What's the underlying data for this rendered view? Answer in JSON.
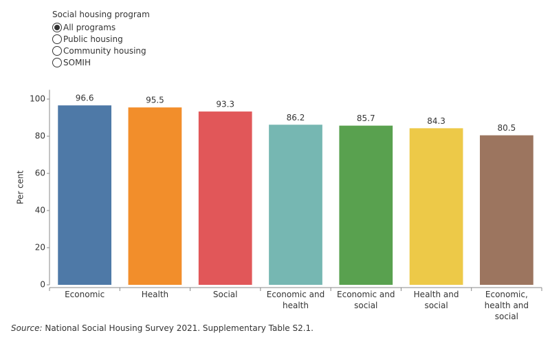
{
  "filter": {
    "title": "Social housing program",
    "options": [
      "All programs",
      "Public housing",
      "Community housing",
      "SOMIH"
    ],
    "selected": 0
  },
  "chart_data": {
    "type": "bar",
    "categories": [
      "Economic",
      "Health",
      "Social",
      "Economic and health",
      "Economic and social",
      "Health and social",
      "Economic, health and social"
    ],
    "values": [
      96.6,
      95.5,
      93.3,
      86.2,
      85.7,
      84.3,
      80.5
    ],
    "colors": [
      "#4e79a7",
      "#f28e2b",
      "#e15759",
      "#76b7b2",
      "#59a14f",
      "#edc948",
      "#9c755f"
    ],
    "y_label": "Per cent",
    "ylim": [
      0,
      105
    ],
    "yticks": [
      0,
      20,
      40,
      60,
      80,
      100
    ],
    "grid": false
  },
  "source": {
    "label": "Source:",
    "text": " National Social Housing Survey 2021. Supplementary Table S2.1."
  }
}
